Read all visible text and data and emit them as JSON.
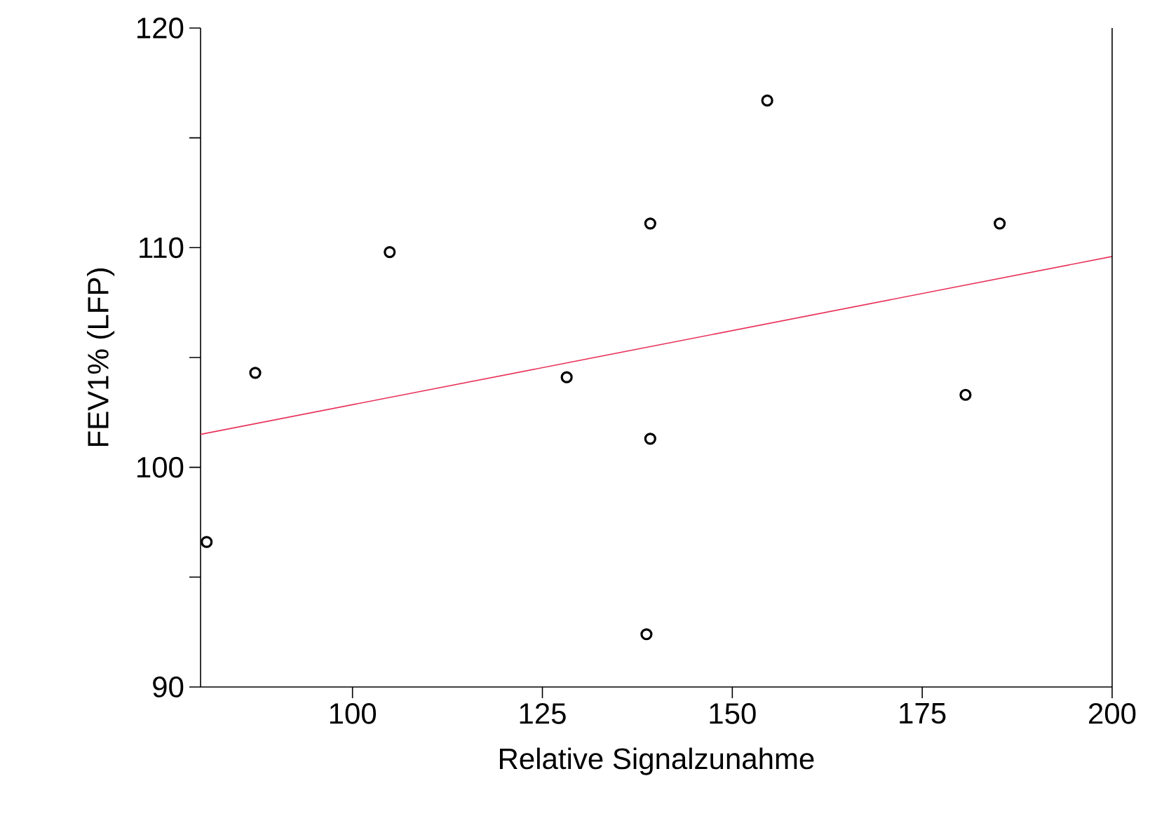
{
  "chart_data": {
    "type": "scatter",
    "xlabel": "Relative Signalzunahme",
    "ylabel": "FEV1% (LFP)",
    "xlim": [
      80,
      200
    ],
    "xticks": [
      100,
      125,
      150,
      175,
      200
    ],
    "ylim": [
      90,
      120
    ],
    "yticks": [
      90,
      {
        "value": 95,
        "label": null
      },
      100,
      {
        "value": 105,
        "label": null
      },
      110,
      {
        "value": 115,
        "label": null
      },
      120
    ],
    "grid": false,
    "series": [
      {
        "marker": "circle",
        "color": "#000000",
        "x": [
          80.8,
          87.2,
          104.9,
          128.2,
          139.2,
          139.2,
          138.7,
          154.6,
          180.7,
          185.2
        ],
        "values": [
          96.6,
          104.3,
          109.8,
          104.1,
          111.1,
          101.3,
          92.4,
          116.7,
          103.3,
          111.1
        ]
      },
      {
        "type": "line",
        "color": "#e8335a",
        "x": [
          80,
          200
        ],
        "values": [
          101.5,
          109.6
        ],
        "marker": "none",
        "line_style": "solid"
      }
    ]
  }
}
